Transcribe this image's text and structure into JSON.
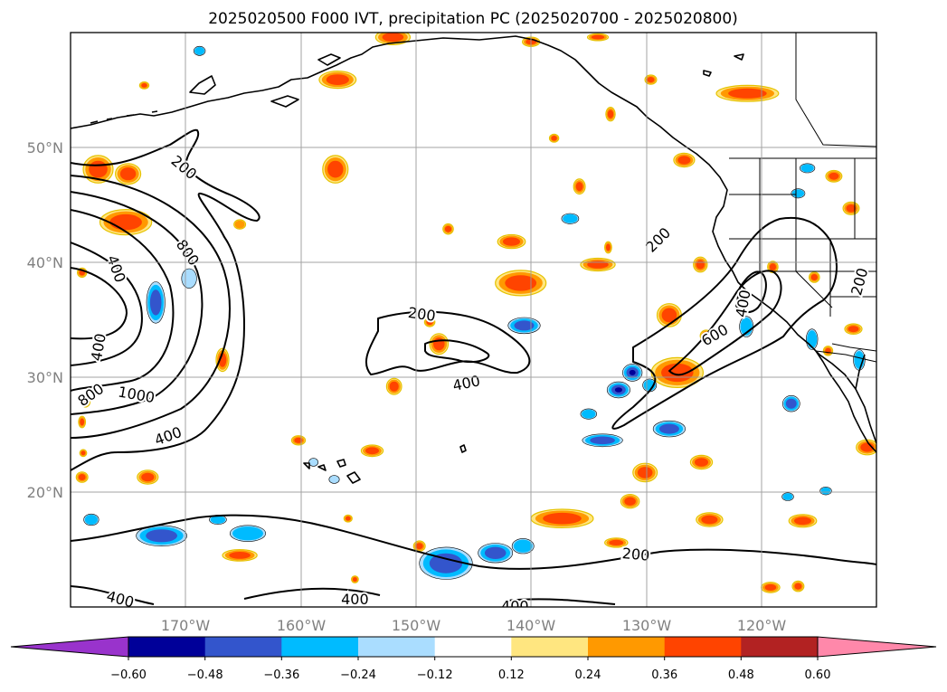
{
  "chart_data": {
    "type": "contour_map",
    "title": "2025020500 F000 IVT, precipitation PC (2025020700 - 2025020800)",
    "lon_range": [
      -180,
      -110
    ],
    "lat_range": [
      10,
      60
    ],
    "lat_ticks": [
      {
        "value": 20,
        "label": "20°N"
      },
      {
        "value": 30,
        "label": "30°N"
      },
      {
        "value": 40,
        "label": "40°N"
      },
      {
        "value": 50,
        "label": "50°N"
      }
    ],
    "lon_ticks": [
      {
        "value": -170,
        "label": "170°W"
      },
      {
        "value": -160,
        "label": "160°W"
      },
      {
        "value": -150,
        "label": "150°W"
      },
      {
        "value": -140,
        "label": "140°W"
      },
      {
        "value": -130,
        "label": "130°W"
      },
      {
        "value": -120,
        "label": "120°W"
      }
    ],
    "grid": true,
    "ivt_contour_levels": [
      "200",
      "400",
      "600",
      "800",
      "1000"
    ],
    "contour_labels": [
      {
        "text": "200",
        "lon": -170.2,
        "lat": 48.2,
        "angle": 40
      },
      {
        "text": "800",
        "lon": -169.9,
        "lat": 40.8,
        "angle": 55
      },
      {
        "text": "400",
        "lon": -176.1,
        "lat": 39.4,
        "angle": 70
      },
      {
        "text": "400",
        "lon": -177.5,
        "lat": 32.6,
        "angle": -80
      },
      {
        "text": "800",
        "lon": -178.2,
        "lat": 28.4,
        "angle": -35
      },
      {
        "text": "1000",
        "lon": -174.3,
        "lat": 28.4,
        "angle": 10
      },
      {
        "text": "400",
        "lon": -171.5,
        "lat": 24.8,
        "angle": -20
      },
      {
        "text": "200",
        "lon": -149.5,
        "lat": 35.4,
        "angle": 8
      },
      {
        "text": "400",
        "lon": -145.6,
        "lat": 29.4,
        "angle": -12
      },
      {
        "text": "200",
        "lon": -128.9,
        "lat": 41.9,
        "angle": -45
      },
      {
        "text": "400",
        "lon": -121.5,
        "lat": 36.4,
        "angle": -80
      },
      {
        "text": "600",
        "lon": -124.0,
        "lat": 33.6,
        "angle": -30
      },
      {
        "text": "200",
        "lon": -111.4,
        "lat": 38.3,
        "angle": -75
      },
      {
        "text": "200",
        "lon": -130.9,
        "lat": 14.5,
        "angle": 5
      },
      {
        "text": "400",
        "lon": -175.7,
        "lat": 10.6,
        "angle": 15
      },
      {
        "text": "400",
        "lon": -155.3,
        "lat": 10.6,
        "angle": 0
      },
      {
        "text": "400",
        "lon": -141.4,
        "lat": 10.0,
        "angle": 0
      }
    ],
    "colorbar": {
      "ticks": [
        "−0.60",
        "−0.48",
        "−0.36",
        "−0.24",
        "−0.12",
        "0.12",
        "0.24",
        "0.36",
        "0.48",
        "0.60"
      ],
      "colors": [
        "#9933cc",
        "#000099",
        "#3355cc",
        "#00bbff",
        "#aaddff",
        "#ffffff",
        "#ffe680",
        "#ff9900",
        "#ff4400",
        "#b22222",
        "#ff88aa"
      ],
      "extend": "both"
    },
    "pc_patches": [
      {
        "lon": -177.6,
        "lat": 48.1,
        "w": 2.6,
        "h": 2.4,
        "v": 0.42
      },
      {
        "lon": -175.0,
        "lat": 47.7,
        "w": 2.2,
        "h": 1.8,
        "v": 0.4
      },
      {
        "lon": -175.2,
        "lat": 43.5,
        "w": 4.5,
        "h": 2.2,
        "v": 0.45
      },
      {
        "lon": -172.6,
        "lat": 36.5,
        "w": 1.6,
        "h": 3.6,
        "v": -0.45
      },
      {
        "lon": -169.7,
        "lat": 38.6,
        "w": 1.3,
        "h": 1.7,
        "v": -0.2
      },
      {
        "lon": -166.8,
        "lat": 31.5,
        "w": 1.1,
        "h": 2.0,
        "v": 0.4
      },
      {
        "lon": -173.3,
        "lat": 21.3,
        "w": 1.8,
        "h": 1.2,
        "v": 0.38
      },
      {
        "lon": -179.0,
        "lat": 21.3,
        "w": 1.0,
        "h": 0.9,
        "v": 0.36
      },
      {
        "lon": -172.1,
        "lat": 16.2,
        "w": 4.4,
        "h": 1.8,
        "v": -0.4
      },
      {
        "lon": -178.2,
        "lat": 17.6,
        "w": 1.3,
        "h": 1.0,
        "v": -0.3
      },
      {
        "lon": -164.6,
        "lat": 16.4,
        "w": 3.1,
        "h": 1.4,
        "v": -0.32
      },
      {
        "lon": -167.2,
        "lat": 17.6,
        "w": 1.5,
        "h": 0.8,
        "v": -0.25
      },
      {
        "lon": -165.3,
        "lat": 14.5,
        "w": 3.0,
        "h": 1.0,
        "v": 0.36
      },
      {
        "lon": -157.0,
        "lat": 48.1,
        "w": 2.2,
        "h": 2.4,
        "v": 0.42
      },
      {
        "lon": -165.3,
        "lat": 43.3,
        "w": 1.0,
        "h": 0.8,
        "v": 0.3
      },
      {
        "lon": -156.8,
        "lat": 55.9,
        "w": 3.2,
        "h": 1.5,
        "v": 0.4
      },
      {
        "lon": -152.0,
        "lat": 59.6,
        "w": 3.0,
        "h": 1.3,
        "v": 0.45
      },
      {
        "lon": -148.0,
        "lat": 32.9,
        "w": 1.6,
        "h": 1.8,
        "v": 0.48
      },
      {
        "lon": -148.8,
        "lat": 34.8,
        "w": 0.9,
        "h": 0.8,
        "v": 0.36
      },
      {
        "lon": -147.2,
        "lat": 42.9,
        "w": 0.9,
        "h": 0.9,
        "v": 0.36
      },
      {
        "lon": -151.9,
        "lat": 29.2,
        "w": 1.3,
        "h": 1.4,
        "v": 0.4
      },
      {
        "lon": -153.8,
        "lat": 23.6,
        "w": 1.9,
        "h": 1.0,
        "v": 0.38
      },
      {
        "lon": -160.2,
        "lat": 24.5,
        "w": 1.2,
        "h": 0.8,
        "v": 0.36
      },
      {
        "lon": -149.7,
        "lat": 15.3,
        "w": 1.0,
        "h": 0.9,
        "v": 0.36
      },
      {
        "lon": -147.4,
        "lat": 13.8,
        "w": 4.6,
        "h": 2.8,
        "v": -0.45
      },
      {
        "lon": -143.1,
        "lat": 14.7,
        "w": 3.0,
        "h": 1.7,
        "v": -0.4
      },
      {
        "lon": -140.9,
        "lat": 38.2,
        "w": 4.4,
        "h": 2.2,
        "v": 0.45
      },
      {
        "lon": -141.7,
        "lat": 41.8,
        "w": 2.4,
        "h": 1.2,
        "v": 0.38
      },
      {
        "lon": -140.6,
        "lat": 34.5,
        "w": 2.8,
        "h": 1.4,
        "v": -0.4
      },
      {
        "lon": -136.6,
        "lat": 43.8,
        "w": 1.5,
        "h": 0.9,
        "v": -0.25
      },
      {
        "lon": -138.0,
        "lat": 50.8,
        "w": 0.8,
        "h": 0.7,
        "v": 0.36
      },
      {
        "lon": -134.2,
        "lat": 39.8,
        "w": 3.0,
        "h": 1.1,
        "v": 0.38
      },
      {
        "lon": -133.3,
        "lat": 41.3,
        "w": 0.6,
        "h": 1.0,
        "v": 0.36
      },
      {
        "lon": -135.8,
        "lat": 46.6,
        "w": 1.0,
        "h": 1.3,
        "v": 0.4
      },
      {
        "lon": -133.8,
        "lat": 24.5,
        "w": 3.5,
        "h": 1.1,
        "v": -0.38
      },
      {
        "lon": -135.0,
        "lat": 26.8,
        "w": 1.4,
        "h": 0.9,
        "v": -0.35
      },
      {
        "lon": -132.4,
        "lat": 28.9,
        "w": 2.0,
        "h": 1.4,
        "v": -0.5
      },
      {
        "lon": -129.7,
        "lat": 29.3,
        "w": 1.2,
        "h": 1.1,
        "v": -0.3
      },
      {
        "lon": -131.2,
        "lat": 30.4,
        "w": 1.7,
        "h": 1.5,
        "v": -0.55
      },
      {
        "lon": -127.3,
        "lat": 30.4,
        "w": 4.5,
        "h": 2.6,
        "v": 0.45
      },
      {
        "lon": -128.0,
        "lat": 25.5,
        "w": 2.8,
        "h": 1.4,
        "v": -0.36
      },
      {
        "lon": -128.0,
        "lat": 35.4,
        "w": 2.1,
        "h": 2.0,
        "v": 0.45
      },
      {
        "lon": -125.3,
        "lat": 39.8,
        "w": 1.2,
        "h": 1.3,
        "v": 0.38
      },
      {
        "lon": -130.1,
        "lat": 21.7,
        "w": 2.1,
        "h": 1.6,
        "v": 0.42
      },
      {
        "lon": -131.4,
        "lat": 19.2,
        "w": 1.6,
        "h": 1.2,
        "v": 0.38
      },
      {
        "lon": -125.2,
        "lat": 22.6,
        "w": 1.9,
        "h": 1.2,
        "v": 0.38
      },
      {
        "lon": -140.7,
        "lat": 15.3,
        "w": 1.9,
        "h": 1.3,
        "v": -0.3
      },
      {
        "lon": -137.3,
        "lat": 17.7,
        "w": 5.4,
        "h": 1.6,
        "v": 0.42
      },
      {
        "lon": -132.6,
        "lat": 15.6,
        "w": 2.0,
        "h": 0.8,
        "v": 0.36
      },
      {
        "lon": -124.5,
        "lat": 17.6,
        "w": 2.3,
        "h": 1.2,
        "v": 0.42
      },
      {
        "lon": -124.8,
        "lat": 33.6,
        "w": 1.0,
        "h": 1.0,
        "v": 0.36
      },
      {
        "lon": -121.2,
        "lat": 54.7,
        "w": 5.4,
        "h": 1.4,
        "v": 0.42
      },
      {
        "lon": -126.7,
        "lat": 48.9,
        "w": 1.8,
        "h": 1.2,
        "v": 0.36
      },
      {
        "lon": -121.3,
        "lat": 34.4,
        "w": 1.2,
        "h": 1.8,
        "v": -0.3
      },
      {
        "lon": -116.0,
        "lat": 48.2,
        "w": 1.3,
        "h": 0.8,
        "v": -0.3
      },
      {
        "lon": -116.8,
        "lat": 46.0,
        "w": 1.2,
        "h": 0.8,
        "v": -0.25
      },
      {
        "lon": -113.7,
        "lat": 47.5,
        "w": 1.4,
        "h": 1.0,
        "v": 0.38
      },
      {
        "lon": -112.2,
        "lat": 44.7,
        "w": 1.4,
        "h": 1.1,
        "v": 0.4
      },
      {
        "lon": -115.4,
        "lat": 38.7,
        "w": 0.9,
        "h": 0.9,
        "v": 0.36
      },
      {
        "lon": -119.0,
        "lat": 39.6,
        "w": 0.9,
        "h": 1.0,
        "v": 0.36
      },
      {
        "lon": -115.6,
        "lat": 33.3,
        "w": 1.0,
        "h": 1.8,
        "v": -0.3
      },
      {
        "lon": -112.0,
        "lat": 34.2,
        "w": 1.5,
        "h": 0.9,
        "v": 0.38
      },
      {
        "lon": -111.5,
        "lat": 31.5,
        "w": 1.0,
        "h": 1.8,
        "v": -0.28
      },
      {
        "lon": -114.2,
        "lat": 32.3,
        "w": 0.8,
        "h": 0.8,
        "v": 0.36
      },
      {
        "lon": -117.4,
        "lat": 27.7,
        "w": 1.5,
        "h": 1.4,
        "v": -0.36
      },
      {
        "lon": -110.8,
        "lat": 23.9,
        "w": 1.9,
        "h": 1.3,
        "v": 0.42
      },
      {
        "lon": -116.4,
        "lat": 17.5,
        "w": 2.4,
        "h": 1.1,
        "v": 0.42
      },
      {
        "lon": -117.7,
        "lat": 19.6,
        "w": 1.0,
        "h": 0.7,
        "v": -0.28
      },
      {
        "lon": -114.4,
        "lat": 20.1,
        "w": 1.0,
        "h": 0.7,
        "v": -0.25
      },
      {
        "lon": -119.2,
        "lat": 11.7,
        "w": 1.6,
        "h": 0.9,
        "v": 0.38
      },
      {
        "lon": -116.8,
        "lat": 11.8,
        "w": 1.0,
        "h": 0.9,
        "v": 0.36
      },
      {
        "lon": -158.9,
        "lat": 22.6,
        "w": 0.8,
        "h": 0.7,
        "v": -0.22
      },
      {
        "lon": -157.1,
        "lat": 21.1,
        "w": 0.9,
        "h": 0.7,
        "v": -0.22
      },
      {
        "lon": -173.6,
        "lat": 55.4,
        "w": 0.8,
        "h": 0.6,
        "v": 0.36
      },
      {
        "lon": -168.8,
        "lat": 58.4,
        "w": 1.0,
        "h": 0.8,
        "v": -0.3
      },
      {
        "lon": -140.0,
        "lat": 59.2,
        "w": 1.5,
        "h": 0.8,
        "v": 0.4
      },
      {
        "lon": -134.2,
        "lat": 59.6,
        "w": 1.8,
        "h": 0.6,
        "v": 0.4
      },
      {
        "lon": -129.6,
        "lat": 55.9,
        "w": 1.0,
        "h": 0.8,
        "v": 0.36
      },
      {
        "lon": -133.1,
        "lat": 52.9,
        "w": 0.8,
        "h": 1.2,
        "v": 0.36
      },
      {
        "lon": -178.7,
        "lat": 27.9,
        "w": 0.8,
        "h": 1.0,
        "v": 0.45
      },
      {
        "lon": -179.0,
        "lat": 26.1,
        "w": 0.6,
        "h": 1.0,
        "v": 0.38
      },
      {
        "lon": -179.0,
        "lat": 39.1,
        "w": 0.8,
        "h": 0.8,
        "v": 0.36
      },
      {
        "lon": -178.9,
        "lat": 23.4,
        "w": 0.6,
        "h": 0.6,
        "v": 0.36
      },
      {
        "lon": -155.9,
        "lat": 17.7,
        "w": 0.7,
        "h": 0.6,
        "v": 0.36
      },
      {
        "lon": -155.3,
        "lat": 12.4,
        "w": 0.6,
        "h": 0.6,
        "v": 0.36
      }
    ]
  }
}
